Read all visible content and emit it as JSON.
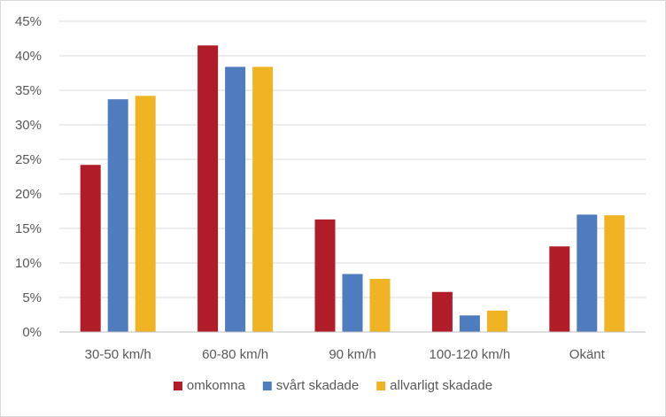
{
  "chart_data": {
    "type": "bar",
    "categories": [
      "30-50 km/h",
      "60-80 km/h",
      "90 km/h",
      "100-120 km/h",
      "Okänt"
    ],
    "series": [
      {
        "name": "omkomna",
        "color": "#b01c28",
        "values": [
          24.2,
          41.5,
          16.3,
          5.8,
          12.4
        ]
      },
      {
        "name": "svårt skadade",
        "color": "#4f7cbe",
        "values": [
          33.7,
          38.4,
          8.4,
          2.4,
          17.0
        ]
      },
      {
        "name": "allvarligt skadade",
        "color": "#f0b323",
        "values": [
          34.2,
          38.4,
          7.7,
          3.1,
          16.9
        ]
      }
    ],
    "ylim": [
      0,
      45
    ],
    "yticks": [
      "0%",
      "5%",
      "10%",
      "15%",
      "20%",
      "25%",
      "30%",
      "35%",
      "40%",
      "45%"
    ],
    "y_unit": "%",
    "grid": true,
    "legend_position": "bottom"
  }
}
